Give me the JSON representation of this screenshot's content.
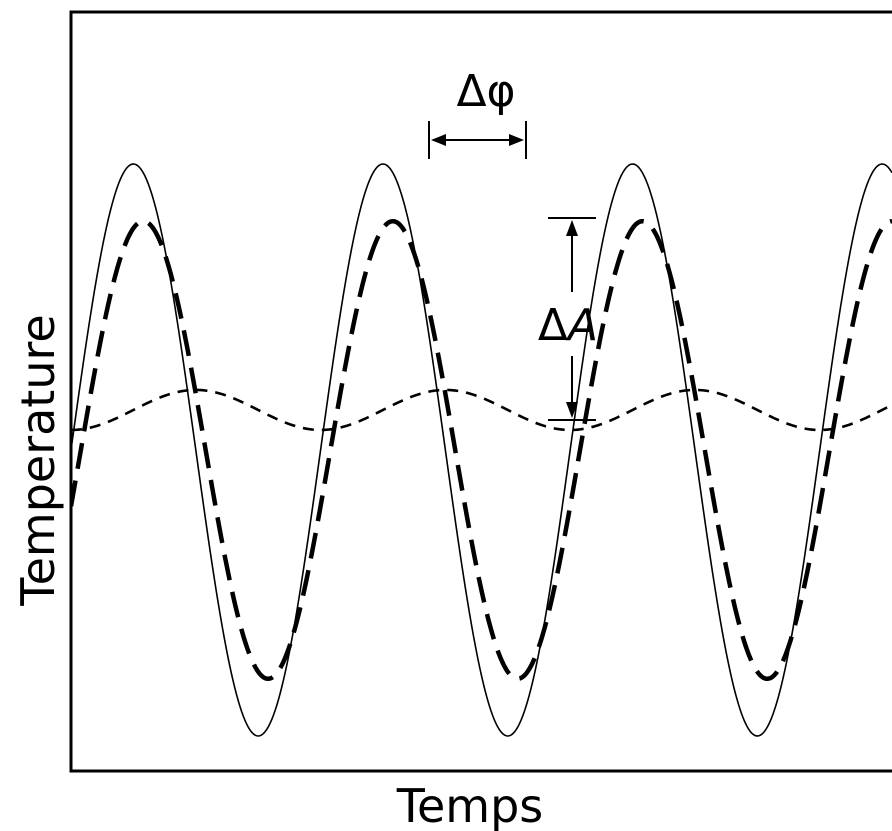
{
  "chart_data": {
    "type": "line",
    "title": "",
    "xlabel": "Temps",
    "ylabel": "Temperature",
    "xlim": [
      0,
      1
    ],
    "ylim": [
      -1.0,
      1.0
    ],
    "grid": false,
    "legend": "none",
    "series": [
      {
        "style": "solid",
        "amplitude": 1.0,
        "period": 0.304,
        "phase_shift": 0.0,
        "offset": 0.0
      },
      {
        "style": "long-dashed",
        "amplitude": 0.8,
        "period": 0.304,
        "phase_shift": 0.012,
        "offset": 0.0
      },
      {
        "style": "short-dashed",
        "amplitude": 0.07,
        "period": 0.304,
        "phase_shift": 0.076,
        "offset": 0.14
      }
    ],
    "annotations": [
      {
        "label_main": "Δφ",
        "type": "horizontal-span"
      },
      {
        "label_prefix": "Δ",
        "label_italic": "A",
        "type": "vertical-span"
      }
    ]
  },
  "colors": {
    "line": "#000000",
    "background": "#ffffff"
  }
}
